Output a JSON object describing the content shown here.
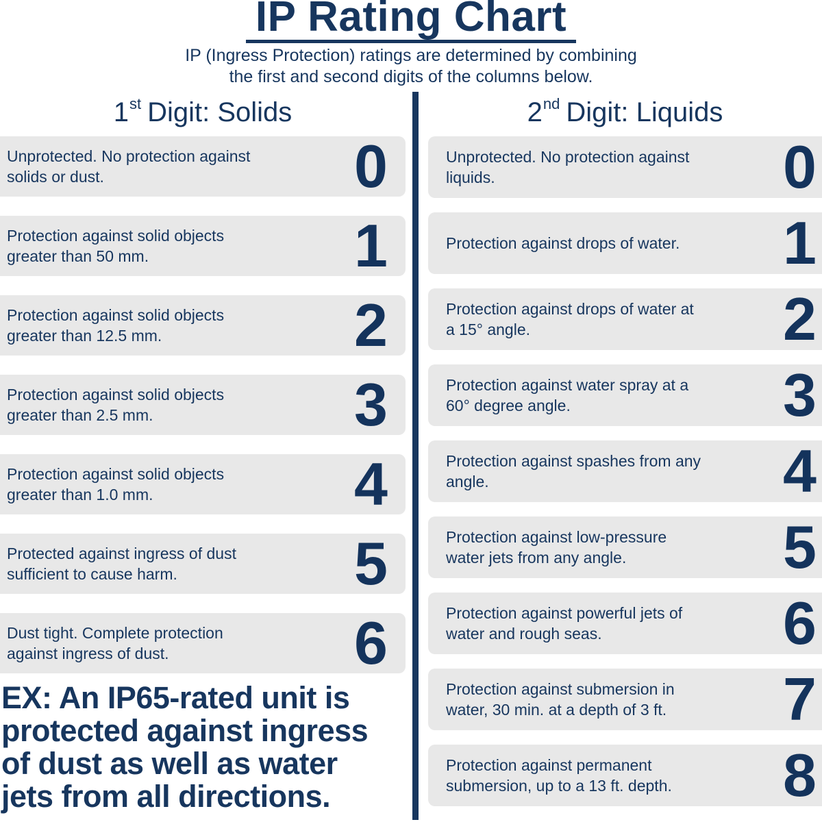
{
  "page": {
    "title": "IP Rating Chart",
    "subtitle": "IP (Ingress Protection) ratings are determined by combining\nthe first and second digits of the columns below."
  },
  "solids": {
    "heading": {
      "digit": "1",
      "ordinal": "st",
      "label": "Digit: Solids"
    },
    "rows": [
      {
        "digit": "0",
        "text": "Unprotected. No protection against\nsolids or dust."
      },
      {
        "digit": "1",
        "text": "Protection against solid objects\ngreater than 50 mm."
      },
      {
        "digit": "2",
        "text": "Protection against solid objects\ngreater than 12.5 mm."
      },
      {
        "digit": "3",
        "text": "Protection against solid objects\ngreater than 2.5 mm."
      },
      {
        "digit": "4",
        "text": "Protection against solid objects\ngreater than 1.0 mm."
      },
      {
        "digit": "5",
        "text": "Protected against ingress of dust\nsufficient to cause harm."
      },
      {
        "digit": "6",
        "text": "Dust tight. Complete protection\nagainst ingress of dust."
      }
    ]
  },
  "liquids": {
    "heading": {
      "digit": "2",
      "ordinal": "nd",
      "label": "Digit: Liquids"
    },
    "rows": [
      {
        "digit": "0",
        "text": "Unprotected. No protection against\nliquids."
      },
      {
        "digit": "1",
        "text": "Protection against drops of water."
      },
      {
        "digit": "2",
        "text": "Protection against drops of water at\na 15° angle."
      },
      {
        "digit": "3",
        "text": "Protection against water spray at a\n60° degree angle."
      },
      {
        "digit": "4",
        "text": "Protection against spashes from any\nangle."
      },
      {
        "digit": "5",
        "text": "Protection against low-pressure\nwater jets from any angle."
      },
      {
        "digit": "6",
        "text": "Protection against powerful jets of\nwater and rough seas."
      },
      {
        "digit": "7",
        "text": "Protection against submersion in\nwater, 30 min. at a depth of 3 ft."
      },
      {
        "digit": "8",
        "text": "Protection against permanent\nsubmersion, up to a 13 ft. depth."
      }
    ]
  },
  "example": "EX: An IP65-rated unit is\nprotected against ingress\nof dust as well as water\njets from all directions.",
  "colors": {
    "navy": "#17365e",
    "digit_navy": "#14335c",
    "box_gray": "#e8e8e8",
    "background": "#ffffff"
  }
}
